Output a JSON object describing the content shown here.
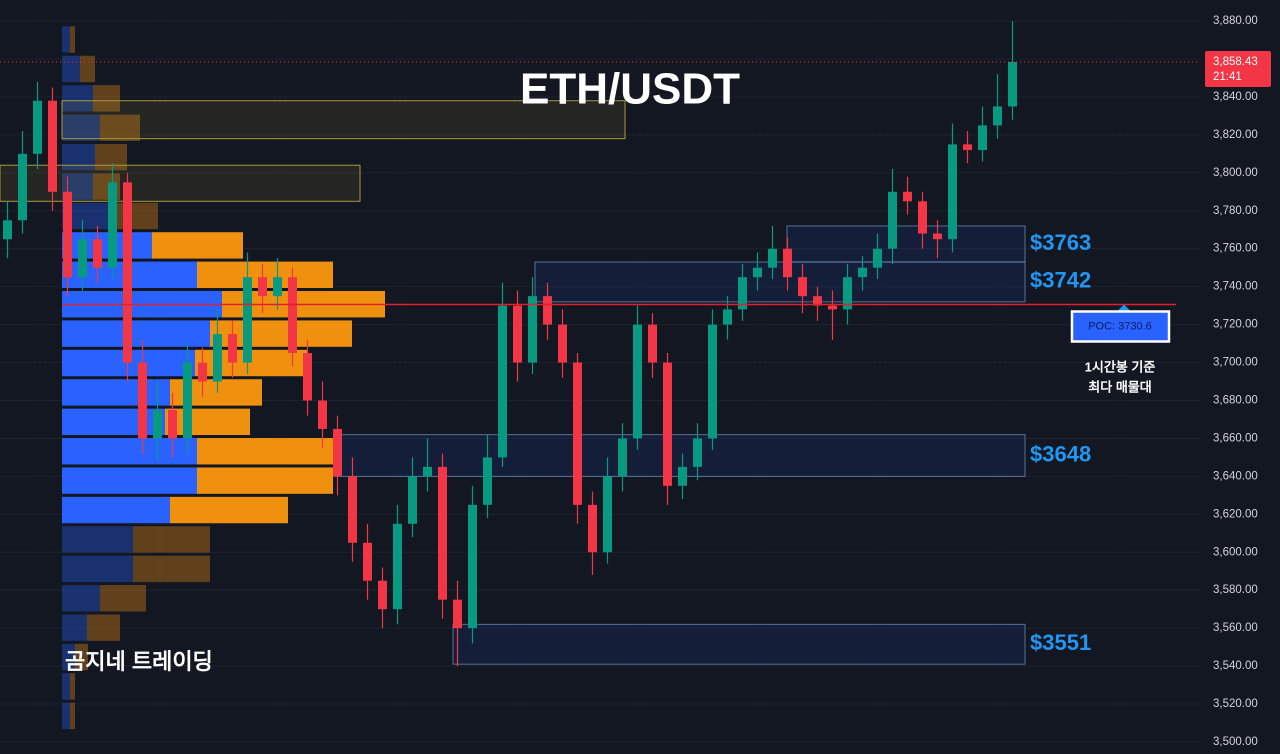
{
  "chart_data": {
    "type": "candlestick",
    "title": "ETH/USDT",
    "watermark": "곰지네 트레이딩",
    "up_color": "#089981",
    "down_color": "#f23645",
    "grid": true,
    "ylim": [
      3496.3,
      3891.1
    ],
    "yticks": [
      {
        "value": 3500,
        "label": "3,500.00"
      },
      {
        "value": 3520,
        "label": "3,520.00"
      },
      {
        "value": 3540,
        "label": "3,540.00"
      },
      {
        "value": 3560,
        "label": "3,560.00"
      },
      {
        "value": 3580,
        "label": "3,580.00"
      },
      {
        "value": 3600,
        "label": "3,600.00"
      },
      {
        "value": 3620,
        "label": "3,620.00"
      },
      {
        "value": 3640,
        "label": "3,640.00"
      },
      {
        "value": 3660,
        "label": "3,660.00"
      },
      {
        "value": 3680,
        "label": "3,680.00"
      },
      {
        "value": 3700,
        "label": "3,700.00"
      },
      {
        "value": 3720,
        "label": "3,720.00"
      },
      {
        "value": 3740,
        "label": "3,740.00"
      },
      {
        "value": 3760,
        "label": "3,760.00"
      },
      {
        "value": 3780,
        "label": "3,780.00"
      },
      {
        "value": 3800,
        "label": "3,800.00"
      },
      {
        "value": 3820,
        "label": "3,820.00"
      },
      {
        "value": 3840,
        "label": "3,840.00"
      },
      {
        "value": 3860,
        "label": "3,860.00"
      },
      {
        "value": 3880,
        "label": "3,880.00"
      }
    ],
    "open": [
      3765,
      3775,
      3810,
      3838,
      3790,
      3745,
      3765,
      3750,
      3795,
      3700,
      3660,
      3675,
      3660,
      3700,
      3690,
      3715,
      3700,
      3745,
      3735,
      3745,
      3705,
      3680,
      3665,
      3640,
      3605,
      3585,
      3570,
      3615,
      3640,
      3645,
      3575,
      3560,
      3625,
      3650,
      3730,
      3700,
      3735,
      3720,
      3700,
      3625,
      3600,
      3640,
      3660,
      3720,
      3700,
      3635,
      3645,
      3660,
      3720,
      3728,
      3745,
      3750,
      3760,
      3745,
      3735,
      3730,
      3728,
      3745,
      3750,
      3760,
      3790,
      3785,
      3768,
      3765,
      3815,
      3812,
      3825,
      3835
    ],
    "high": [
      3785,
      3822,
      3848,
      3845,
      3798,
      3775,
      3772,
      3805,
      3800,
      3712,
      3690,
      3684,
      3710,
      3708,
      3728,
      3722,
      3758,
      3752,
      3755,
      3750,
      3712,
      3690,
      3672,
      3650,
      3615,
      3592,
      3625,
      3650,
      3660,
      3652,
      3585,
      3635,
      3662,
      3742,
      3738,
      3745,
      3742,
      3728,
      3705,
      3632,
      3650,
      3668,
      3730,
      3726,
      3705,
      3652,
      3668,
      3728,
      3735,
      3752,
      3758,
      3772,
      3766,
      3752,
      3740,
      3738,
      3752,
      3756,
      3768,
      3802,
      3798,
      3790,
      3775,
      3826,
      3822,
      3835,
      3852,
      3880
    ],
    "low": [
      3755,
      3768,
      3802,
      3780,
      3735,
      3738,
      3742,
      3744,
      3690,
      3652,
      3648,
      3650,
      3652,
      3682,
      3684,
      3692,
      3694,
      3726,
      3728,
      3698,
      3672,
      3655,
      3630,
      3595,
      3575,
      3560,
      3562,
      3608,
      3632,
      3565,
      3540,
      3552,
      3618,
      3645,
      3690,
      3694,
      3712,
      3692,
      3615,
      3588,
      3594,
      3632,
      3654,
      3692,
      3625,
      3628,
      3638,
      3654,
      3712,
      3722,
      3738,
      3744,
      3738,
      3726,
      3722,
      3712,
      3720,
      3738,
      3744,
      3752,
      3778,
      3760,
      3755,
      3758,
      3805,
      3806,
      3818,
      3828
    ],
    "close": [
      3775,
      3810,
      3838,
      3790,
      3745,
      3765,
      3750,
      3795,
      3700,
      3660,
      3675,
      3660,
      3700,
      3690,
      3715,
      3700,
      3745,
      3735,
      3745,
      3705,
      3680,
      3665,
      3640,
      3605,
      3585,
      3570,
      3615,
      3640,
      3645,
      3575,
      3560,
      3625,
      3650,
      3730,
      3700,
      3735,
      3720,
      3700,
      3625,
      3600,
      3640,
      3660,
      3720,
      3700,
      3635,
      3645,
      3660,
      3720,
      3728,
      3745,
      3750,
      3760,
      3745,
      3735,
      3730,
      3728,
      3745,
      3750,
      3760,
      3790,
      3785,
      3768,
      3765,
      3815,
      3812,
      3825,
      3835,
      3858.43
    ],
    "last_price": {
      "value": 3858.43,
      "label": "3,858.43"
    },
    "last_time": "21:41",
    "poc": {
      "value": 3730.6,
      "label": "POC: 3730.6"
    },
    "poc_note": [
      "1시간봉 기준",
      "최다 매물대"
    ],
    "zones": [
      {
        "label": "$3763",
        "top": 3772,
        "bottom": 3753
      },
      {
        "label": "$3742",
        "top": 3753,
        "bottom": 3732
      },
      {
        "label": "$3648",
        "top": 3662,
        "bottom": 3640
      },
      {
        "label": "$3551",
        "top": 3562,
        "bottom": 3541
      }
    ],
    "boxes": [
      {
        "top": 3838,
        "bottom": 3818
      },
      {
        "top": 3804,
        "bottom": 3785
      }
    ],
    "volume_profile": {
      "bins": [
        3878,
        3862.5,
        3847,
        3831.5,
        3816,
        3800.5,
        3785,
        3769.5,
        3754,
        3738.5,
        3723,
        3707.5,
        3692,
        3676.5,
        3661,
        3645.5,
        3630,
        3614.5,
        3599,
        3583.5,
        3568,
        3552.5,
        3537,
        3521.5,
        3506
      ],
      "buy": [
        8,
        18,
        31,
        38,
        33,
        31,
        48,
        90,
        135,
        160,
        148,
        133,
        108,
        103,
        135,
        135,
        108,
        71,
        71,
        38,
        25,
        13,
        8,
        8
      ],
      "sell": [
        5,
        15,
        27,
        40,
        32,
        27,
        48,
        91,
        136,
        163,
        142,
        113,
        92,
        85,
        136,
        136,
        118,
        77,
        77,
        46,
        33,
        13,
        5,
        5
      ],
      "value_area": [
        3769.5,
        3614.5
      ],
      "buy_color": "#2962ff",
      "sell_color": "#f0900f"
    }
  }
}
